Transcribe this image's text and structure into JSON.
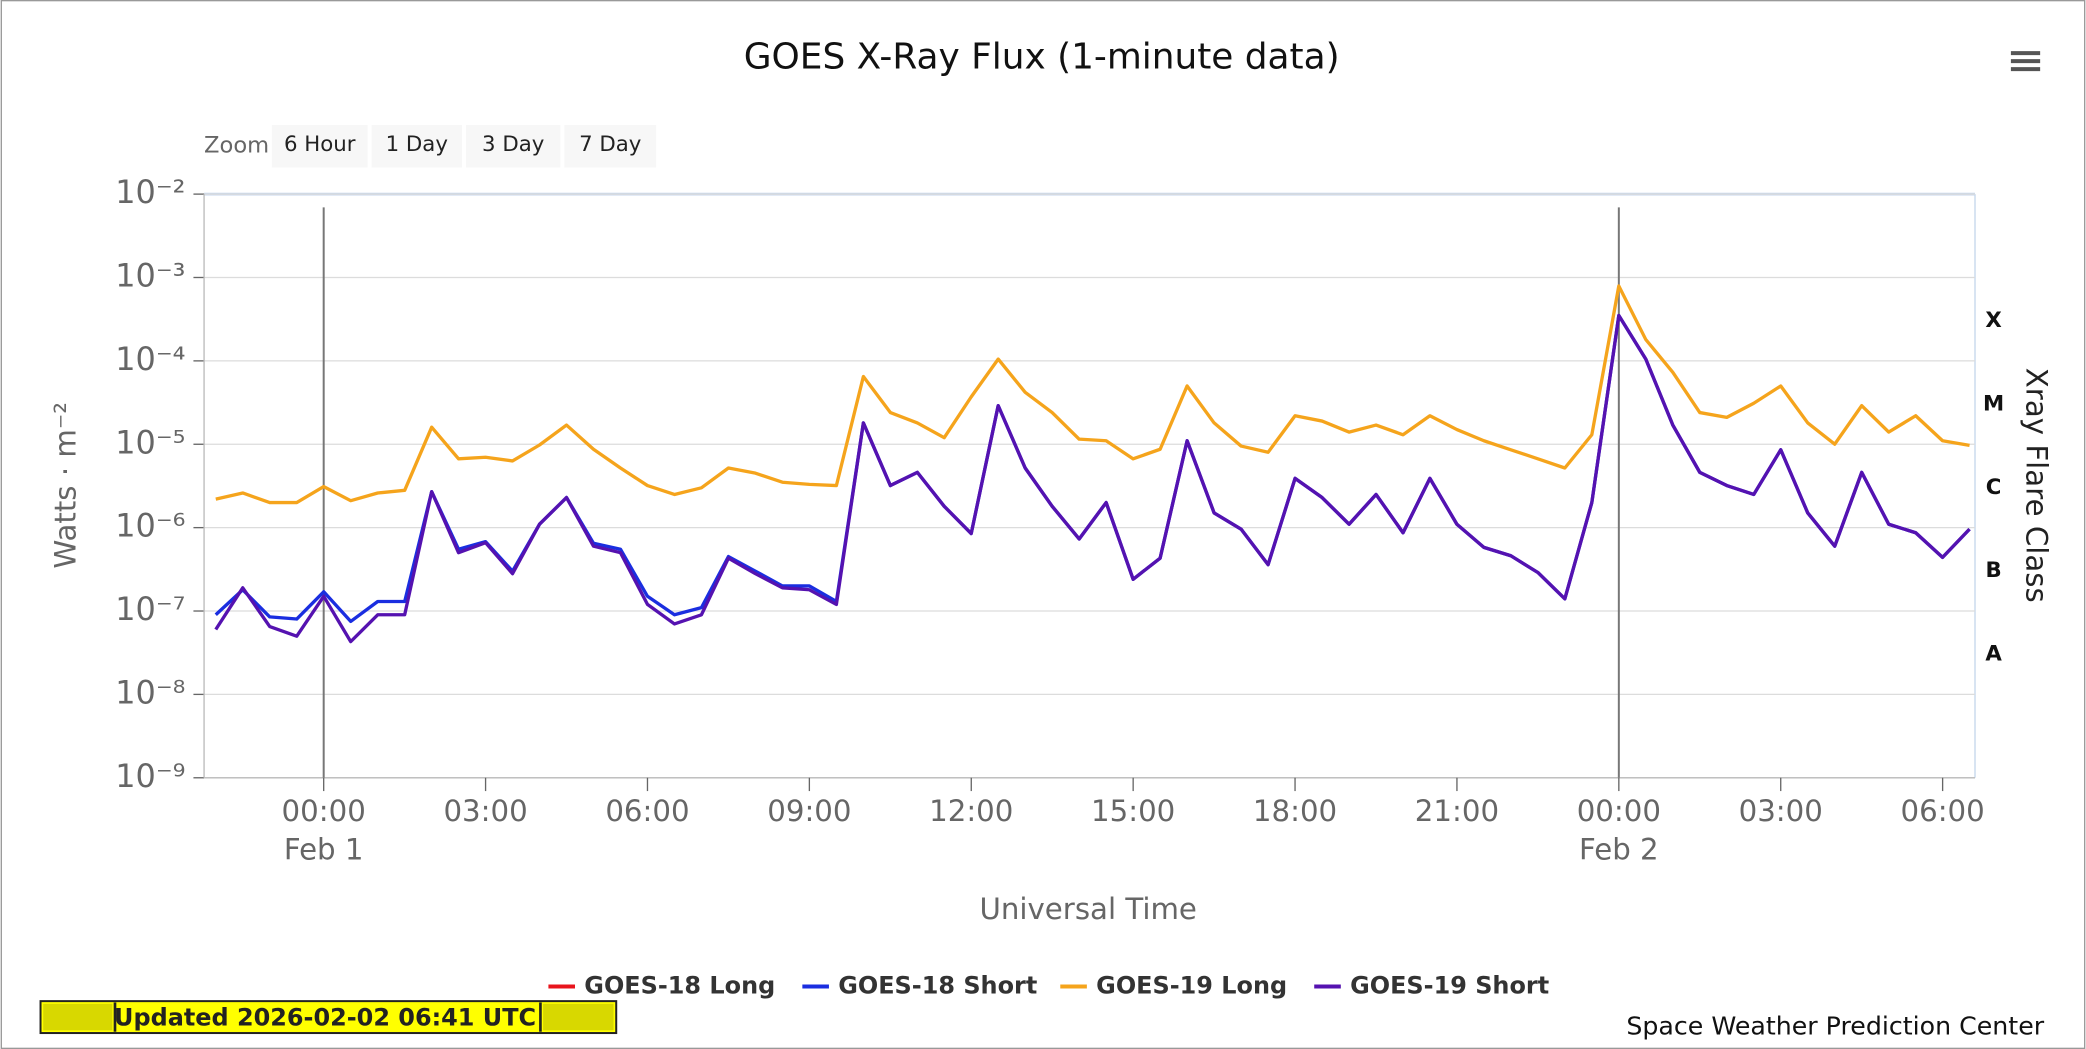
{
  "chart_data": {
    "type": "line",
    "title": "GOES X-Ray Flux (1-minute data)",
    "zoom_label": "Zoom",
    "zoom_buttons": [
      "6 Hour",
      "1 Day",
      "3 Day",
      "7 Day"
    ],
    "x_label": "Universal Time",
    "y_label": "Watts · m⁻²",
    "y2_label": "Xray Flare Class",
    "note": "Updated 2026-02-02 06:41 UTC",
    "credit": "Space Weather Prediction Center",
    "log_y": true,
    "grid": true,
    "legend": "bottom",
    "xlim": [
      "Jan 31 21:47",
      "Feb 2 06:36"
    ],
    "xticks": [
      {
        "value": "Feb 1 00:00",
        "label": "00:00"
      },
      {
        "value": "Feb 1 03:00",
        "label": "03:00"
      },
      {
        "value": "Feb 1 06:00",
        "label": "06:00"
      },
      {
        "value": "Feb 1 09:00",
        "label": "09:00"
      },
      {
        "value": "Feb 1 12:00",
        "label": "12:00"
      },
      {
        "value": "Feb 1 15:00",
        "label": "15:00"
      },
      {
        "value": "Feb 1 18:00",
        "label": "18:00"
      },
      {
        "value": "Feb 1 21:00",
        "label": "21:00"
      },
      {
        "value": "Feb 2 00:00",
        "label": "00:00"
      },
      {
        "value": "Feb 2 03:00",
        "label": "03:00"
      },
      {
        "value": "Feb 2 06:00",
        "label": "06:00"
      }
    ],
    "x_date_labels": [
      {
        "value": "Feb 1 00:00",
        "label": "Feb 1"
      },
      {
        "value": "Feb 2 00:00",
        "label": "Feb 2"
      }
    ],
    "ylim": [
      1e-09,
      0.01
    ],
    "yticks": [
      {
        "value": 1e-09,
        "label": "10⁻⁹"
      },
      {
        "value": 1e-08,
        "label": "10⁻⁸"
      },
      {
        "value": 1e-07,
        "label": "10⁻⁷"
      },
      {
        "value": 1e-06,
        "label": "10⁻⁶"
      },
      {
        "value": 1e-05,
        "label": "10⁻⁵"
      },
      {
        "value": 0.0001,
        "label": "10⁻⁴"
      },
      {
        "value": 0.001,
        "label": "10⁻³"
      },
      {
        "value": 0.01,
        "label": "10⁻²"
      }
    ],
    "y2lim": [
      1e-09,
      0.01
    ],
    "y2ticks": [
      {
        "value": 3e-08,
        "label": "A"
      },
      {
        "value": 3e-07,
        "label": "B"
      },
      {
        "value": 3e-06,
        "label": "C"
      },
      {
        "value": 3e-05,
        "label": "M"
      },
      {
        "value": 0.0003,
        "label": "X"
      }
    ],
    "x": [
      "Jan 31 22:00",
      "Jan 31 22:30",
      "Jan 31 23:00",
      "Jan 31 23:30",
      "Feb 1 00:00",
      "Feb 1 00:30",
      "Feb 1 01:00",
      "Feb 1 01:30",
      "Feb 1 02:00",
      "Feb 1 02:30",
      "Feb 1 03:00",
      "Feb 1 03:30",
      "Feb 1 04:00",
      "Feb 1 04:30",
      "Feb 1 05:00",
      "Feb 1 05:30",
      "Feb 1 06:00",
      "Feb 1 06:30",
      "Feb 1 07:00",
      "Feb 1 07:30",
      "Feb 1 08:00",
      "Feb 1 08:30",
      "Feb 1 09:00",
      "Feb 1 09:30",
      "Feb 1 10:00",
      "Feb 1 10:30",
      "Feb 1 11:00",
      "Feb 1 11:30",
      "Feb 1 12:00",
      "Feb 1 12:30",
      "Feb 1 13:00",
      "Feb 1 13:30",
      "Feb 1 14:00",
      "Feb 1 14:30",
      "Feb 1 15:00",
      "Feb 1 15:30",
      "Feb 1 16:00",
      "Feb 1 16:30",
      "Feb 1 17:00",
      "Feb 1 17:30",
      "Feb 1 18:00",
      "Feb 1 18:30",
      "Feb 1 19:00",
      "Feb 1 19:30",
      "Feb 1 20:00",
      "Feb 1 20:30",
      "Feb 1 21:00",
      "Feb 1 21:30",
      "Feb 1 22:00",
      "Feb 1 22:30",
      "Feb 1 23:00",
      "Feb 1 23:30",
      "Feb 2 00:00",
      "Feb 2 00:30",
      "Feb 2 01:00",
      "Feb 2 01:30",
      "Feb 2 02:00",
      "Feb 2 02:30",
      "Feb 2 03:00",
      "Feb 2 03:30",
      "Feb 2 04:00",
      "Feb 2 04:30",
      "Feb 2 05:00",
      "Feb 2 05:30",
      "Feb 2 06:00",
      "Feb 2 06:30"
    ],
    "series": [
      {
        "name": "GOES-18 Long",
        "color": "#e8141c",
        "values": [
          null,
          null,
          null,
          null,
          null,
          null,
          null,
          null,
          null,
          null,
          null,
          null,
          null,
          null,
          null,
          null,
          null,
          null,
          null,
          null,
          null,
          null,
          null,
          null,
          null,
          null,
          null,
          null,
          null,
          null,
          null,
          null,
          null,
          null,
          null,
          null,
          null,
          null,
          null,
          null,
          null,
          null,
          null,
          null,
          null,
          null,
          null,
          null,
          null,
          null,
          null,
          null,
          null,
          null,
          null,
          null,
          null,
          null,
          null,
          null,
          null,
          null,
          null,
          null,
          null,
          null
        ]
      },
      {
        "name": "GOES-18 Short",
        "color": "#1a2ee0",
        "values": [
          9e-08,
          1.8e-07,
          8.5e-08,
          8e-08,
          1.7e-07,
          7.5e-08,
          1.3e-07,
          1.3e-07,
          2.7e-06,
          5.5e-07,
          6.8e-07,
          3e-07,
          1.1e-06,
          2.3e-06,
          6.5e-07,
          5.5e-07,
          1.5e-07,
          9e-08,
          1.1e-07,
          4.5e-07,
          3e-07,
          2e-07,
          2e-07,
          1.3e-07,
          1.8e-05,
          3.2e-06,
          4.6e-06,
          1.8e-06,
          8.5e-07,
          2.9e-05,
          5.2e-06,
          1.8e-06,
          7.3e-07,
          2e-06,
          2.4e-07,
          4.3e-07,
          1.1e-05,
          1.5e-06,
          9.6e-07,
          3.6e-07,
          3.9e-06,
          2.3e-06,
          1.1e-06,
          2.5e-06,
          8.7e-07,
          3.9e-06,
          1.1e-06,
          5.8e-07,
          4.6e-07,
          2.9e-07,
          1.4e-07,
          2e-06,
          0.00035,
          0.000105,
          1.7e-05,
          4.6e-06,
          3.2e-06,
          2.5e-06,
          8.6e-06,
          1.5e-06,
          6e-07,
          4.6e-06,
          1.1e-06,
          8.7e-07,
          4.4e-07,
          9.6e-07
        ]
      },
      {
        "name": "GOES-19 Long",
        "color": "#f5a41c",
        "values": [
          2.2e-06,
          2.6e-06,
          2e-06,
          2e-06,
          3.1e-06,
          2.1e-06,
          2.6e-06,
          2.8e-06,
          1.6e-05,
          6.7e-06,
          7e-06,
          6.3e-06,
          9.8e-06,
          1.7e-05,
          8.7e-06,
          5.2e-06,
          3.2e-06,
          2.5e-06,
          3e-06,
          5.2e-06,
          4.5e-06,
          3.5e-06,
          3.3e-06,
          3.2e-06,
          6.5e-05,
          2.4e-05,
          1.8e-05,
          1.2e-05,
          3.7e-05,
          0.000105,
          4.2e-05,
          2.4e-05,
          1.15e-05,
          1.1e-05,
          6.7e-06,
          8.7e-06,
          5e-05,
          1.8e-05,
          9.5e-06,
          8e-06,
          2.2e-05,
          1.9e-05,
          1.4e-05,
          1.7e-05,
          1.3e-05,
          2.2e-05,
          1.5e-05,
          1.1e-05,
          8.6e-06,
          6.7e-06,
          5.2e-06,
          1.3e-05,
          0.00079,
          0.00018,
          7.3e-05,
          2.4e-05,
          2.1e-05,
          3.1e-05,
          5e-05,
          1.8e-05,
          1e-05,
          2.9e-05,
          1.4e-05,
          2.2e-05,
          1.1e-05,
          9.7e-06
        ]
      },
      {
        "name": "GOES-19 Short",
        "color": "#5512b0",
        "values": [
          6e-08,
          1.9e-07,
          6.5e-08,
          5e-08,
          1.5e-07,
          4.3e-08,
          9e-08,
          9e-08,
          2.7e-06,
          5e-07,
          6.6e-07,
          2.8e-07,
          1.1e-06,
          2.3e-06,
          6e-07,
          5e-07,
          1.2e-07,
          7e-08,
          9e-08,
          4.3e-07,
          2.8e-07,
          1.9e-07,
          1.8e-07,
          1.2e-07,
          1.8e-05,
          3.2e-06,
          4.6e-06,
          1.8e-06,
          8.5e-07,
          2.9e-05,
          5.2e-06,
          1.8e-06,
          7.3e-07,
          2e-06,
          2.4e-07,
          4.3e-07,
          1.1e-05,
          1.5e-06,
          9.6e-07,
          3.6e-07,
          3.9e-06,
          2.3e-06,
          1.1e-06,
          2.5e-06,
          8.7e-07,
          3.9e-06,
          1.1e-06,
          5.8e-07,
          4.6e-07,
          2.9e-07,
          1.4e-07,
          2e-06,
          0.00035,
          0.000105,
          1.7e-05,
          4.6e-06,
          3.2e-06,
          2.5e-06,
          8.6e-06,
          1.5e-06,
          6e-07,
          4.6e-06,
          1.1e-06,
          8.7e-07,
          4.4e-07,
          9.6e-07
        ]
      }
    ]
  }
}
